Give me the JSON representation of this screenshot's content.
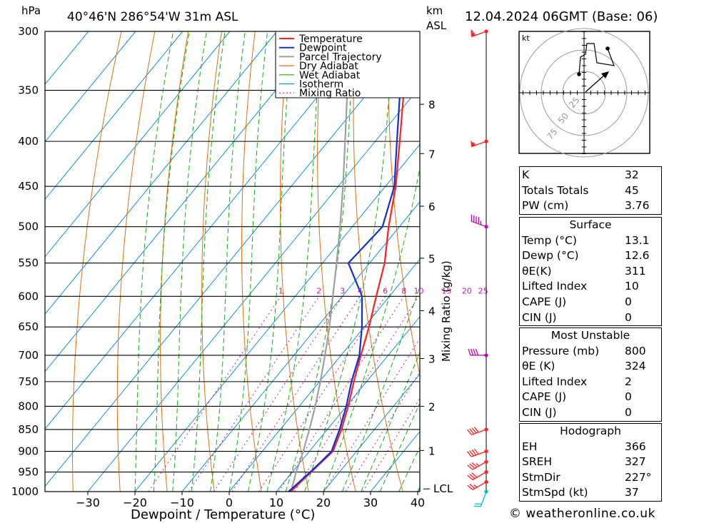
{
  "header": {
    "pressure_unit": "hPa",
    "location": "40°46'N  286°54'W  31m  ASL",
    "height_unit_line1": "km",
    "height_unit_line2": "ASL",
    "datetime": "12.04.2024  06GMT  (Base: 06)"
  },
  "chart_data": {
    "type": "line",
    "title": "40°46'N  286°54'W  31m  ASL",
    "xlabel": "Dewpoint / Temperature (°C)",
    "ylabel": "hPa",
    "y_scale": "log",
    "ylim": [
      1000,
      300
    ],
    "xlim": [
      -40,
      40
    ],
    "x_ticks": [
      "-30",
      "-20",
      "-10",
      "0",
      "10",
      "20",
      "30",
      "40"
    ],
    "pressure_levels": [
      300,
      350,
      400,
      450,
      500,
      550,
      600,
      650,
      700,
      750,
      800,
      850,
      900,
      950,
      1000
    ],
    "km_ticks": [
      {
        "km": "8",
        "p": 363
      },
      {
        "km": "7",
        "p": 413
      },
      {
        "km": "6",
        "p": 474
      },
      {
        "km": "5",
        "p": 543
      },
      {
        "km": "4",
        "p": 623
      },
      {
        "km": "3",
        "p": 706
      },
      {
        "km": "2",
        "p": 800
      },
      {
        "km": "1",
        "p": 898
      }
    ],
    "lcl_label": "LCL",
    "lcl_pressure": 993,
    "mixing_ratio_label": "Mixing Ratio (g/kg)",
    "mixing_ratio_values": [
      "1",
      "2",
      "3",
      "4",
      "6",
      "8",
      "10",
      "15",
      "20",
      "25"
    ],
    "legend": [
      "Temperature",
      "Dewpoint",
      "Parcel Trajectory",
      "Dry Adiabat",
      "Wet Adiabat",
      "Isotherm",
      "Mixing Ratio"
    ],
    "legend_placement": "top-right",
    "colors": {
      "temperature": "#ff2020",
      "dewpoint": "#1030d0",
      "parcel": "#a0a0a0",
      "dry_adiabat": "#e07010",
      "wet_adiabat": "#10b010",
      "isotherm": "#1090e0",
      "mixing_ratio": "#d010a0"
    },
    "series": [
      {
        "name": "Temperature",
        "points": [
          [
            1000,
            13.1
          ],
          [
            975,
            13.5
          ],
          [
            950,
            14.0
          ],
          [
            925,
            14.5
          ],
          [
            900,
            15.0
          ],
          [
            850,
            13.0
          ],
          [
            800,
            10.4
          ],
          [
            750,
            7.3
          ],
          [
            700,
            4.2
          ],
          [
            650,
            1.0
          ],
          [
            600,
            -2.8
          ],
          [
            550,
            -6.8
          ],
          [
            500,
            -12.3
          ],
          [
            450,
            -17.8
          ],
          [
            400,
            -24.8
          ],
          [
            350,
            -32.8
          ],
          [
            300,
            -42.0
          ]
        ]
      },
      {
        "name": "Dewpoint",
        "points": [
          [
            1000,
            12.6
          ],
          [
            975,
            13.2
          ],
          [
            950,
            13.8
          ],
          [
            925,
            14.3
          ],
          [
            900,
            14.7
          ],
          [
            850,
            12.6
          ],
          [
            800,
            10.0
          ],
          [
            750,
            6.8
          ],
          [
            700,
            3.9
          ],
          [
            650,
            -0.5
          ],
          [
            600,
            -5.8
          ],
          [
            550,
            -14.5
          ],
          [
            500,
            -13.6
          ],
          [
            450,
            -18.1
          ],
          [
            400,
            -25.4
          ],
          [
            350,
            -33.6
          ],
          [
            300,
            -43.5
          ]
        ]
      },
      {
        "name": "Parcel Trajectory",
        "points": [
          [
            1000,
            13.1
          ],
          [
            950,
            10.8
          ],
          [
            900,
            8.7
          ],
          [
            850,
            6.2
          ],
          [
            800,
            3.4
          ],
          [
            750,
            0.2
          ],
          [
            700,
            -3.4
          ],
          [
            650,
            -7.4
          ],
          [
            600,
            -12.0
          ],
          [
            550,
            -17.0
          ],
          [
            500,
            -22.6
          ],
          [
            450,
            -29.0
          ],
          [
            400,
            -36.4
          ],
          [
            350,
            -44.8
          ],
          [
            300,
            -53.8
          ]
        ]
      }
    ]
  },
  "wind_profile": {
    "barbs": [
      {
        "p": 1000,
        "dir": 200,
        "kt": 20,
        "color": "#00c0c0"
      },
      {
        "p": 975,
        "dir": 240,
        "kt": 25,
        "color": "#ff2020"
      },
      {
        "p": 950,
        "dir": 240,
        "kt": 30,
        "color": "#ff2020"
      },
      {
        "p": 925,
        "dir": 240,
        "kt": 35,
        "color": "#ff2020"
      },
      {
        "p": 900,
        "dir": 250,
        "kt": 40,
        "color": "#ff2020"
      },
      {
        "p": 850,
        "dir": 250,
        "kt": 40,
        "color": "#ff2020"
      },
      {
        "p": 700,
        "dir": 270,
        "kt": 40,
        "color": "#c000c0"
      },
      {
        "p": 500,
        "dir": 290,
        "kt": 45,
        "color": "#c000c0"
      },
      {
        "p": 400,
        "dir": 250,
        "kt": 55,
        "color": "#ff2020"
      },
      {
        "p": 300,
        "dir": 250,
        "kt": 60,
        "color": "#ff2020"
      }
    ]
  },
  "hodograph": {
    "unit": "kt",
    "ring_labels": [
      "25",
      "50",
      "75"
    ]
  },
  "indices": {
    "general": [
      {
        "label": "K",
        "value": "32"
      },
      {
        "label": "Totals Totals",
        "value": "45"
      },
      {
        "label": "PW (cm)",
        "value": "3.76"
      }
    ],
    "surface_title": "Surface",
    "surface": [
      {
        "label": "Temp (°C)",
        "value": "13.1"
      },
      {
        "label": "Dewp (°C)",
        "value": "12.6"
      },
      {
        "label": "θE(K)",
        "value": "311"
      },
      {
        "label": "Lifted Index",
        "value": "10"
      },
      {
        "label": "CAPE (J)",
        "value": "0"
      },
      {
        "label": "CIN (J)",
        "value": "0"
      }
    ],
    "mu_title": "Most Unstable",
    "mu": [
      {
        "label": "Pressure (mb)",
        "value": "800"
      },
      {
        "label": "θE (K)",
        "value": "324"
      },
      {
        "label": "Lifted Index",
        "value": "2"
      },
      {
        "label": "CAPE (J)",
        "value": "0"
      },
      {
        "label": "CIN (J)",
        "value": "0"
      }
    ],
    "hodo_title": "Hodograph",
    "hodo": [
      {
        "label": "EH",
        "value": "366"
      },
      {
        "label": "SREH",
        "value": "327"
      },
      {
        "label": "StmDir",
        "value": "227°"
      },
      {
        "label": "StmSpd (kt)",
        "value": "37"
      }
    ]
  },
  "footer": {
    "credit": "© weatheronline.co.uk"
  }
}
